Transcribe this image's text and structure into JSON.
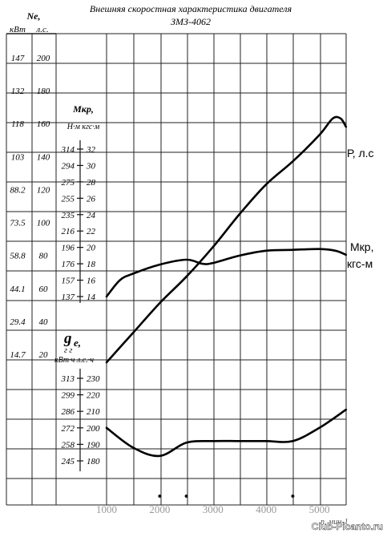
{
  "title_line1": "Внешняя скоростная характеристика двигателя",
  "title_line2": "ЗМЗ-4062",
  "power_axis": {
    "label": "Ne,",
    "units_kw": "кВт",
    "units_hp": "л.с.",
    "ticks_kw": [
      "147",
      "132",
      "118",
      "103",
      "88.2",
      "73.5",
      "58.8",
      "44.1",
      "29.4",
      "14.7"
    ],
    "ticks_hp": [
      "200",
      "180",
      "160",
      "140",
      "120",
      "100",
      "80",
      "60",
      "40",
      "20"
    ]
  },
  "torque_axis": {
    "label": "Мкр,",
    "units": "Н·м кгс·м",
    "ticks_nm": [
      "314",
      "294",
      "275",
      "255",
      "235",
      "216",
      "196",
      "176",
      "157",
      "137"
    ],
    "ticks_kgf": [
      "32",
      "30",
      "28",
      "26",
      "24",
      "22",
      "20",
      "18",
      "16",
      "14"
    ]
  },
  "ge_axis": {
    "label": "g",
    "subscript": "e,",
    "superscript": "г        г",
    "units": "кВт·ч  л.с.·ч",
    "ticks_g_kwh": [
      "313",
      "299",
      "286",
      "272",
      "258",
      "245"
    ],
    "ticks_g_hph": [
      "230",
      "220",
      "210",
      "200",
      "190",
      "180"
    ]
  },
  "x_axis": {
    "ticks": [
      "1000",
      "2000",
      "3000",
      "4000",
      "5000"
    ],
    "label": "n, мин-1"
  },
  "chart_data": {
    "type": "line",
    "x_range": [
      1000,
      5500
    ],
    "series": [
      {
        "name": "Р, л.с",
        "axis": "power_hp",
        "x": [
          1000,
          1500,
          2000,
          2500,
          3000,
          3500,
          4000,
          4500,
          5000,
          5250,
          5400,
          5500
        ],
        "y": [
          18,
          36,
          54,
          70,
          88,
          108,
          126,
          140,
          156,
          166,
          166,
          161
        ]
      },
      {
        "name": "Мкр, кгс-м",
        "axis": "torque_kgfm",
        "x": [
          1000,
          1250,
          1500,
          2000,
          2500,
          2800,
          3000,
          3500,
          4000,
          4500,
          5000,
          5300,
          5500
        ],
        "y": [
          14,
          16,
          16.8,
          17.9,
          18.5,
          18.0,
          18.1,
          19.0,
          19.6,
          19.7,
          19.8,
          19.6,
          19.1
        ]
      },
      {
        "name": "ge",
        "axis": "ge_g_hph",
        "x": [
          1000,
          1500,
          2000,
          2500,
          3000,
          3500,
          4000,
          4500,
          5000,
          5500
        ],
        "y": [
          200,
          188,
          183,
          191,
          192,
          192,
          192,
          192,
          200,
          211
        ]
      }
    ]
  },
  "watermark": "Club-Picanto.ru"
}
